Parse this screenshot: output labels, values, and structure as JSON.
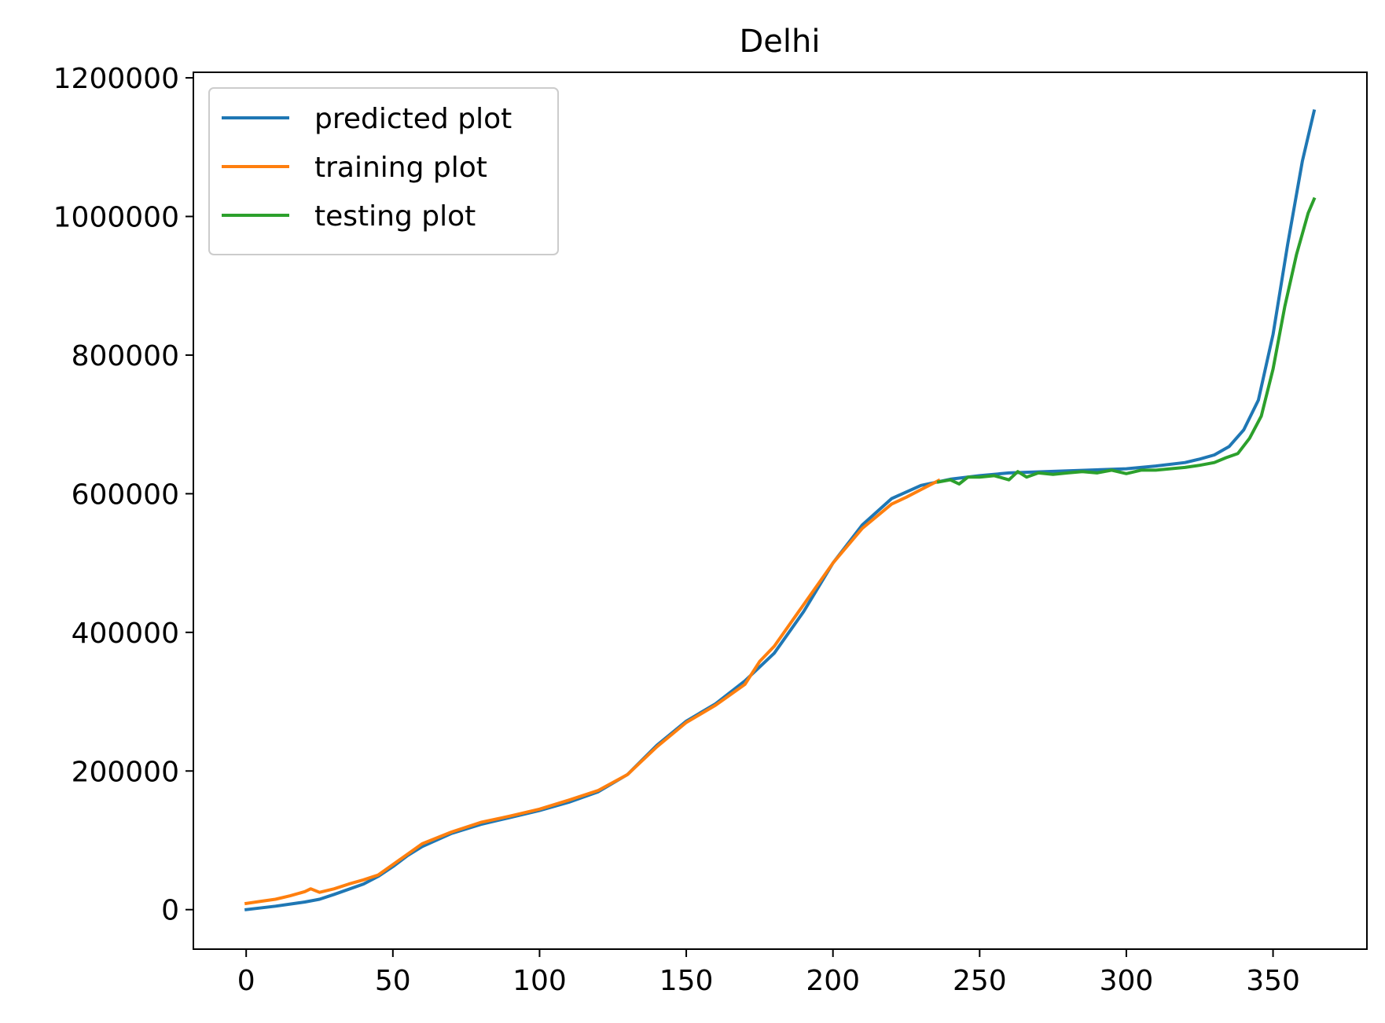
{
  "chart_data": {
    "type": "line",
    "title": "Delhi",
    "xlabel": "",
    "ylabel": "",
    "xlim": [
      -18,
      382
    ],
    "ylim": [
      -57000,
      1208000
    ],
    "xticks": [
      0,
      50,
      100,
      150,
      200,
      250,
      300,
      350
    ],
    "xtick_labels": [
      "0",
      "50",
      "100",
      "150",
      "200",
      "250",
      "300",
      "350"
    ],
    "yticks": [
      0,
      200000,
      400000,
      600000,
      800000,
      1000000,
      1200000
    ],
    "ytick_labels": [
      "0",
      "200000",
      "400000",
      "600000",
      "800000",
      "1000000",
      "1200000"
    ],
    "grid": false,
    "legend_position": "upper-left",
    "series": [
      {
        "name": "predicted plot",
        "color": "#1f77b4",
        "x": [
          0,
          10,
          20,
          25,
          30,
          40,
          45,
          50,
          55,
          60,
          70,
          80,
          90,
          100,
          110,
          120,
          130,
          140,
          150,
          160,
          170,
          180,
          190,
          200,
          210,
          220,
          230,
          240,
          250,
          260,
          280,
          300,
          310,
          320,
          325,
          330,
          335,
          340,
          345,
          350,
          355,
          360,
          364
        ],
        "y": [
          0,
          5000,
          11000,
          15000,
          22000,
          37000,
          48000,
          62000,
          78000,
          91000,
          110000,
          123000,
          133000,
          143000,
          155000,
          170000,
          195000,
          237000,
          272000,
          297000,
          330000,
          370000,
          430000,
          500000,
          555000,
          593000,
          612000,
          621000,
          626000,
          630000,
          633000,
          636000,
          640000,
          645000,
          650000,
          656000,
          668000,
          692000,
          735000,
          830000,
          960000,
          1080000,
          1152000
        ]
      },
      {
        "name": "training plot",
        "color": "#ff7f0e",
        "x": [
          0,
          5,
          10,
          15,
          20,
          22,
          25,
          30,
          35,
          40,
          45,
          50,
          55,
          60,
          70,
          80,
          90,
          100,
          110,
          120,
          130,
          140,
          150,
          160,
          170,
          175,
          180,
          190,
          200,
          210,
          220,
          225,
          230,
          236
        ],
        "y": [
          9000,
          12000,
          15000,
          20000,
          26000,
          30000,
          25000,
          30000,
          37000,
          43000,
          50000,
          65000,
          80000,
          95000,
          112000,
          126000,
          135000,
          145000,
          158000,
          172000,
          195000,
          235000,
          270000,
          295000,
          325000,
          358000,
          380000,
          440000,
          500000,
          550000,
          585000,
          595000,
          606000,
          619000
        ]
      },
      {
        "name": "testing plot",
        "color": "#2ca02c",
        "x": [
          236,
          240,
          243,
          246,
          250,
          255,
          260,
          263,
          266,
          270,
          275,
          280,
          285,
          290,
          295,
          300,
          305,
          310,
          315,
          320,
          325,
          330,
          334,
          338,
          342,
          346,
          350,
          354,
          358,
          362,
          364
        ],
        "y": [
          617000,
          620000,
          614000,
          624000,
          624000,
          626000,
          620000,
          632000,
          624000,
          630000,
          628000,
          630000,
          632000,
          630000,
          634000,
          629000,
          634000,
          634000,
          636000,
          638000,
          641000,
          645000,
          652000,
          658000,
          680000,
          712000,
          780000,
          870000,
          945000,
          1005000,
          1025000
        ]
      }
    ]
  }
}
